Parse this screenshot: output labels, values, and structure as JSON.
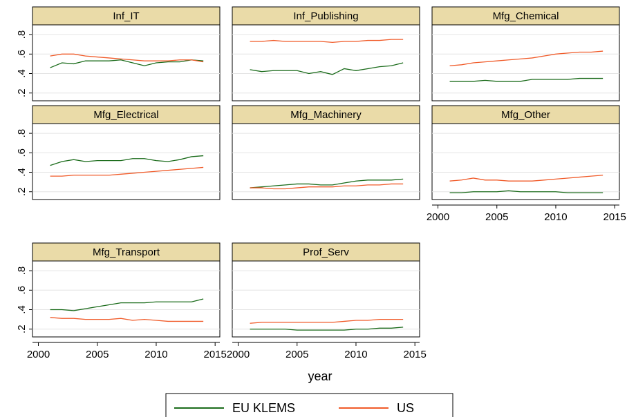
{
  "chart_data": [
    {
      "type": "line",
      "title": "Inf_IT",
      "x": [
        2001,
        2002,
        2003,
        2004,
        2005,
        2006,
        2007,
        2008,
        2009,
        2010,
        2011,
        2012,
        2013,
        2014
      ],
      "xlim": [
        1999.5,
        2015.4
      ],
      "ylim": [
        0.12,
        0.9
      ],
      "yticks": [
        {
          "value": 0.2,
          "label": ".2"
        },
        {
          "value": 0.4,
          "label": ".4"
        },
        {
          "value": 0.6,
          "label": ".6"
        },
        {
          "value": 0.8,
          "label": ".8"
        }
      ],
      "grid": true,
      "series": [
        {
          "name": "EU KLEMS",
          "color": "#1a6b1a",
          "values": [
            0.46,
            0.51,
            0.5,
            0.53,
            0.53,
            0.53,
            0.54,
            0.51,
            0.48,
            0.51,
            0.52,
            0.52,
            0.54,
            0.53
          ]
        },
        {
          "name": "US",
          "color": "#f05a28",
          "values": [
            0.58,
            0.6,
            0.6,
            0.58,
            0.57,
            0.56,
            0.55,
            0.54,
            0.53,
            0.53,
            0.53,
            0.54,
            0.54,
            0.52
          ]
        }
      ]
    },
    {
      "type": "line",
      "title": "Inf_Publishing",
      "x": [
        2001,
        2002,
        2003,
        2004,
        2005,
        2006,
        2007,
        2008,
        2009,
        2010,
        2011,
        2012,
        2013,
        2014
      ],
      "xlim": [
        1999.5,
        2015.4
      ],
      "ylim": [
        0.12,
        0.9
      ],
      "yticks": [
        0.2,
        0.4,
        0.6,
        0.8
      ],
      "grid": true,
      "series": [
        {
          "name": "EU KLEMS",
          "color": "#1a6b1a",
          "values": [
            0.44,
            0.42,
            0.43,
            0.43,
            0.43,
            0.4,
            0.42,
            0.39,
            0.45,
            0.43,
            0.45,
            0.47,
            0.48,
            0.51
          ]
        },
        {
          "name": "US",
          "color": "#f05a28",
          "values": [
            0.73,
            0.73,
            0.74,
            0.73,
            0.73,
            0.73,
            0.73,
            0.72,
            0.73,
            0.73,
            0.74,
            0.74,
            0.75,
            0.75
          ]
        }
      ]
    },
    {
      "type": "line",
      "title": "Mfg_Chemical",
      "x": [
        2001,
        2002,
        2003,
        2004,
        2005,
        2006,
        2007,
        2008,
        2009,
        2010,
        2011,
        2012,
        2013,
        2014
      ],
      "xlim": [
        1999.5,
        2015.4
      ],
      "ylim": [
        0.12,
        0.9
      ],
      "yticks": [
        0.2,
        0.4,
        0.6,
        0.8
      ],
      "grid": true,
      "series": [
        {
          "name": "EU KLEMS",
          "color": "#1a6b1a",
          "values": [
            0.32,
            0.32,
            0.32,
            0.33,
            0.32,
            0.32,
            0.32,
            0.34,
            0.34,
            0.34,
            0.34,
            0.35,
            0.35,
            0.35
          ]
        },
        {
          "name": "US",
          "color": "#f05a28",
          "values": [
            0.48,
            0.49,
            0.51,
            0.52,
            0.53,
            0.54,
            0.55,
            0.56,
            0.58,
            0.6,
            0.61,
            0.62,
            0.62,
            0.63
          ]
        }
      ]
    },
    {
      "type": "line",
      "title": "Mfg_Electrical",
      "x": [
        2001,
        2002,
        2003,
        2004,
        2005,
        2006,
        2007,
        2008,
        2009,
        2010,
        2011,
        2012,
        2013,
        2014
      ],
      "xlim": [
        1999.5,
        2015.4
      ],
      "ylim": [
        0.12,
        0.9
      ],
      "yticks": [
        {
          "value": 0.2,
          "label": ".2"
        },
        {
          "value": 0.4,
          "label": ".4"
        },
        {
          "value": 0.6,
          "label": ".6"
        },
        {
          "value": 0.8,
          "label": ".8"
        }
      ],
      "grid": true,
      "series": [
        {
          "name": "EU KLEMS",
          "color": "#1a6b1a",
          "values": [
            0.47,
            0.51,
            0.53,
            0.51,
            0.52,
            0.52,
            0.52,
            0.54,
            0.54,
            0.52,
            0.51,
            0.53,
            0.56,
            0.57
          ]
        },
        {
          "name": "US",
          "color": "#f05a28",
          "values": [
            0.36,
            0.36,
            0.37,
            0.37,
            0.37,
            0.37,
            0.38,
            0.39,
            0.4,
            0.41,
            0.42,
            0.43,
            0.44,
            0.45
          ]
        }
      ]
    },
    {
      "type": "line",
      "title": "Mfg_Machinery",
      "x": [
        2001,
        2002,
        2003,
        2004,
        2005,
        2006,
        2007,
        2008,
        2009,
        2010,
        2011,
        2012,
        2013,
        2014
      ],
      "xlim": [
        1999.5,
        2015.4
      ],
      "ylim": [
        0.12,
        0.9
      ],
      "yticks": [
        0.2,
        0.4,
        0.6,
        0.8
      ],
      "grid": true,
      "series": [
        {
          "name": "EU KLEMS",
          "color": "#1a6b1a",
          "values": [
            0.24,
            0.25,
            0.26,
            0.27,
            0.28,
            0.28,
            0.27,
            0.27,
            0.29,
            0.31,
            0.32,
            0.32,
            0.32,
            0.33
          ]
        },
        {
          "name": "US",
          "color": "#f05a28",
          "values": [
            0.24,
            0.24,
            0.23,
            0.23,
            0.24,
            0.25,
            0.25,
            0.25,
            0.26,
            0.26,
            0.27,
            0.27,
            0.28,
            0.28
          ]
        }
      ]
    },
    {
      "type": "line",
      "title": "Mfg_Other",
      "x": [
        2001,
        2002,
        2003,
        2004,
        2005,
        2006,
        2007,
        2008,
        2009,
        2010,
        2011,
        2012,
        2013,
        2014
      ],
      "xlim": [
        1999.5,
        2015.4
      ],
      "xticks": [
        2000,
        2005,
        2010,
        2015
      ],
      "ylim": [
        0.12,
        0.9
      ],
      "yticks": [
        0.2,
        0.4,
        0.6,
        0.8
      ],
      "grid": true,
      "series": [
        {
          "name": "EU KLEMS",
          "color": "#1a6b1a",
          "values": [
            0.19,
            0.19,
            0.2,
            0.2,
            0.2,
            0.21,
            0.2,
            0.2,
            0.2,
            0.2,
            0.19,
            0.19,
            0.19,
            0.19
          ]
        },
        {
          "name": "US",
          "color": "#f05a28",
          "values": [
            0.31,
            0.32,
            0.34,
            0.32,
            0.32,
            0.31,
            0.31,
            0.31,
            0.32,
            0.33,
            0.34,
            0.35,
            0.36,
            0.37
          ]
        }
      ]
    },
    {
      "type": "line",
      "title": "Mfg_Transport",
      "x": [
        2001,
        2002,
        2003,
        2004,
        2005,
        2006,
        2007,
        2008,
        2009,
        2010,
        2011,
        2012,
        2013,
        2014
      ],
      "xlim": [
        1999.5,
        2015.4
      ],
      "xticks": [
        2000,
        2005,
        2010,
        2015
      ],
      "ylim": [
        0.12,
        0.9
      ],
      "yticks": [
        {
          "value": 0.2,
          "label": ".2"
        },
        {
          "value": 0.4,
          "label": ".4"
        },
        {
          "value": 0.6,
          "label": ".6"
        },
        {
          "value": 0.8,
          "label": ".8"
        }
      ],
      "grid": true,
      "series": [
        {
          "name": "EU KLEMS",
          "color": "#1a6b1a",
          "values": [
            0.4,
            0.4,
            0.39,
            0.41,
            0.43,
            0.45,
            0.47,
            0.47,
            0.47,
            0.48,
            0.48,
            0.48,
            0.48,
            0.51
          ]
        },
        {
          "name": "US",
          "color": "#f05a28",
          "values": [
            0.32,
            0.31,
            0.31,
            0.3,
            0.3,
            0.3,
            0.31,
            0.29,
            0.3,
            0.29,
            0.28,
            0.28,
            0.28,
            0.28
          ]
        }
      ]
    },
    {
      "type": "line",
      "title": "Prof_Serv",
      "x": [
        2001,
        2002,
        2003,
        2004,
        2005,
        2006,
        2007,
        2008,
        2009,
        2010,
        2011,
        2012,
        2013,
        2014
      ],
      "xlim": [
        1999.5,
        2015.4
      ],
      "xticks": [
        2000,
        2005,
        2010,
        2015
      ],
      "ylim": [
        0.12,
        0.9
      ],
      "yticks": [
        0.2,
        0.4,
        0.6,
        0.8
      ],
      "grid": true,
      "series": [
        {
          "name": "EU KLEMS",
          "color": "#1a6b1a",
          "values": [
            0.2,
            0.2,
            0.2,
            0.2,
            0.19,
            0.19,
            0.19,
            0.19,
            0.19,
            0.2,
            0.2,
            0.21,
            0.21,
            0.22
          ]
        },
        {
          "name": "US",
          "color": "#f05a28",
          "values": [
            0.26,
            0.27,
            0.27,
            0.27,
            0.27,
            0.27,
            0.27,
            0.27,
            0.28,
            0.29,
            0.29,
            0.3,
            0.3,
            0.3
          ]
        }
      ]
    }
  ],
  "xlabel": "year",
  "legend_position": "bottom"
}
